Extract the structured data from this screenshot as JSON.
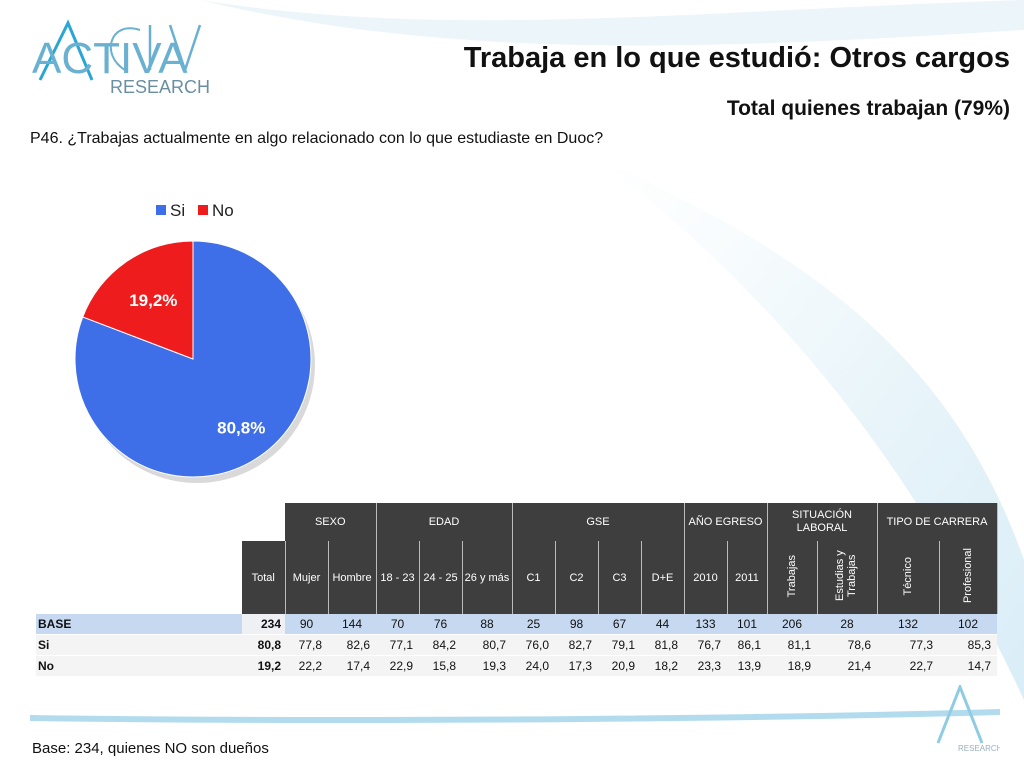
{
  "logo": {
    "name": "ACTIVA",
    "sub": "RESEARCH",
    "mini": "RESEARCH"
  },
  "title": "Trabaja en lo que estudió: Otros cargos",
  "subtitle": "Total quienes trabajan (79%)",
  "question": "P46. ¿Trabajas actualmente en algo relacionado con lo que estudiaste en Duoc?",
  "colors": {
    "si": "#3f6fe8",
    "no": "#ee1c1c",
    "header_bg": "#3e3e3e",
    "base_row": "#c6d9f1"
  },
  "chart_data": {
    "type": "pie",
    "legend_position": "top",
    "series": [
      {
        "name": "Si",
        "value": 80.8,
        "label": "80,8%"
      },
      {
        "name": "No",
        "value": 19.2,
        "label": "19,2%"
      }
    ]
  },
  "table": {
    "groups": [
      {
        "label": "SEXO"
      },
      {
        "label": "EDAD"
      },
      {
        "label": "GSE"
      },
      {
        "label": "AÑO EGRESO"
      },
      {
        "label": "SITUACIÓN LABORAL"
      },
      {
        "label": "TIPO DE CARRERA"
      }
    ],
    "columns": [
      "Total",
      "Mujer",
      "Hombre",
      "18 - 23",
      "24 - 25",
      "26 y más",
      "C1",
      "C2",
      "C3",
      "D+E",
      "2010",
      "2011",
      "Trabajas",
      "Estudias y Trabajas",
      "Técnico",
      "Profesional"
    ],
    "rows": [
      {
        "label": "BASE",
        "values": [
          "234",
          "90",
          "144",
          "70",
          "76",
          "88",
          "25",
          "98",
          "67",
          "44",
          "133",
          "101",
          "206",
          "28",
          "132",
          "102"
        ]
      },
      {
        "label": "Si",
        "values": [
          "80,8",
          "77,8",
          "82,6",
          "77,1",
          "84,2",
          "80,7",
          "76,0",
          "82,7",
          "79,1",
          "81,8",
          "76,7",
          "86,1",
          "81,1",
          "78,6",
          "77,3",
          "85,3"
        ]
      },
      {
        "label": "No",
        "values": [
          "19,2",
          "22,2",
          "17,4",
          "22,9",
          "15,8",
          "19,3",
          "24,0",
          "17,3",
          "20,9",
          "18,2",
          "23,3",
          "13,9",
          "18,9",
          "21,4",
          "22,7",
          "14,7"
        ]
      }
    ]
  },
  "footer": "Base: 234, quienes NO son dueños"
}
